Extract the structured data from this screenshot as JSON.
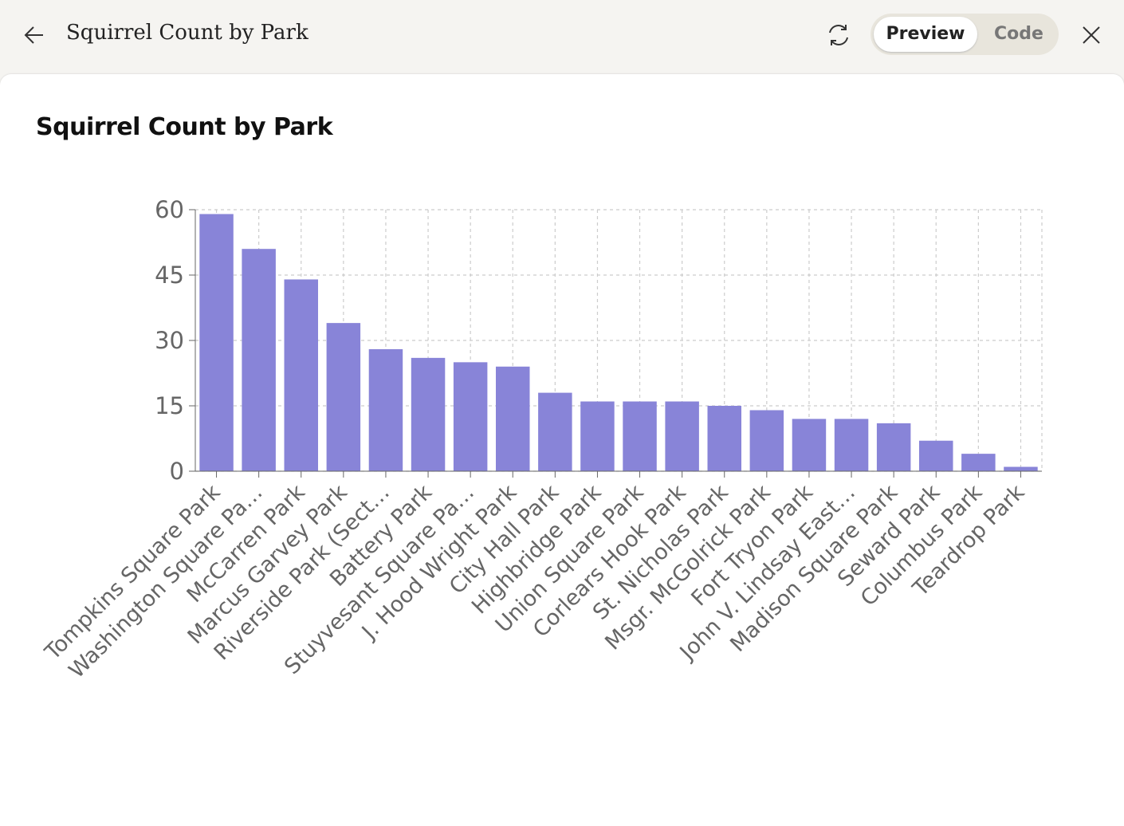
{
  "header": {
    "title": "Squirrel Count by Park",
    "tabs": [
      "Preview",
      "Code"
    ]
  },
  "chart_data": {
    "type": "bar",
    "title": "Squirrel Count by Park",
    "categories": [
      "Tompkins Square Park",
      "Washington Square Pa…",
      "McCarren Park",
      "Marcus Garvey Park",
      "Riverside Park (Sect…",
      "Battery Park",
      "Stuyvesant Square Pa…",
      "J. Hood Wright Park",
      "City Hall Park",
      "Highbridge Park",
      "Union Square Park",
      "Corlears Hook Park",
      "St. Nicholas Park",
      "Msgr. McGolrick Park",
      "Fort Tryon Park",
      "John V. Lindsay East…",
      "Madison Square Park",
      "Seward Park",
      "Columbus Park",
      "Teardrop Park"
    ],
    "values": [
      59,
      51,
      44,
      34,
      28,
      26,
      25,
      24,
      18,
      16,
      16,
      16,
      15,
      14,
      12,
      12,
      11,
      7,
      4,
      1
    ],
    "color": "#8884d8",
    "ylim": [
      0,
      60
    ],
    "yticks": [
      0,
      15,
      30,
      45,
      60
    ],
    "grid": true
  }
}
